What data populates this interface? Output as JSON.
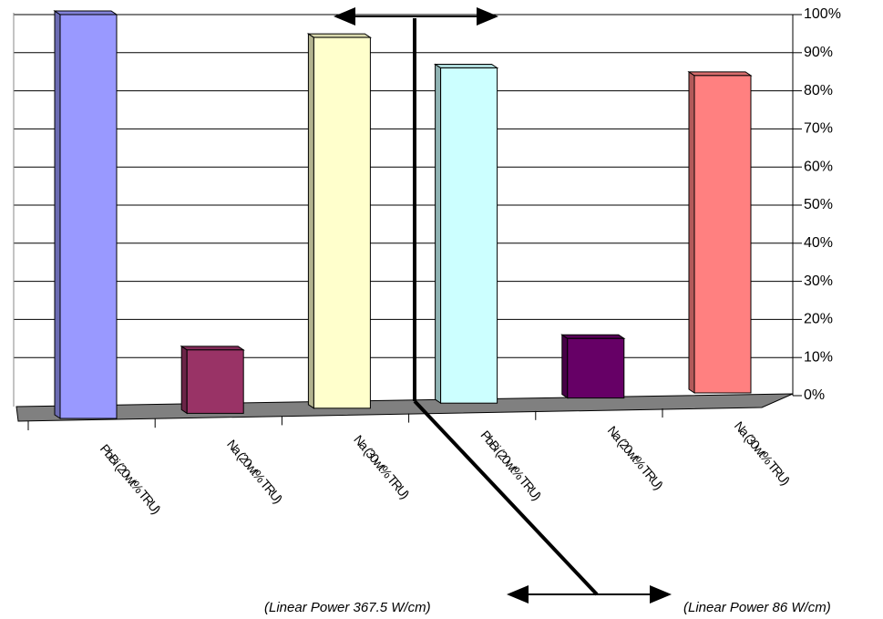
{
  "chart_data": {
    "type": "bar3d",
    "categories": [
      "PbBi (20wt% TRU)",
      "Na (20wt% TRU)",
      "Na (30wt% TRU)",
      "PbBi (20wt% TRU)",
      "Na (20wt% TRU)",
      "Na (30wt% TRU)"
    ],
    "values": [
      100,
      12,
      94,
      86,
      15,
      84
    ],
    "colors": [
      "#9999ff",
      "#993366",
      "#ffffcc",
      "#ccffff",
      "#660066",
      "#ff8080"
    ],
    "ylim": [
      0,
      100
    ],
    "yticks": [
      {
        "value": 0,
        "label": "0%"
      },
      {
        "value": 10,
        "label": "10%"
      },
      {
        "value": 20,
        "label": "20%"
      },
      {
        "value": 30,
        "label": "30%"
      },
      {
        "value": 40,
        "label": "40%"
      },
      {
        "value": 50,
        "label": "50%"
      },
      {
        "value": 60,
        "label": "60%"
      },
      {
        "value": 70,
        "label": "70%"
      },
      {
        "value": 80,
        "label": "80%"
      },
      {
        "value": 90,
        "label": "90%"
      },
      {
        "value": 100,
        "label": "100%"
      }
    ],
    "grid": true,
    "annotations": [
      "(Linear Power 367.5 W/cm)",
      "(Linear Power 86 W/cm)"
    ]
  }
}
